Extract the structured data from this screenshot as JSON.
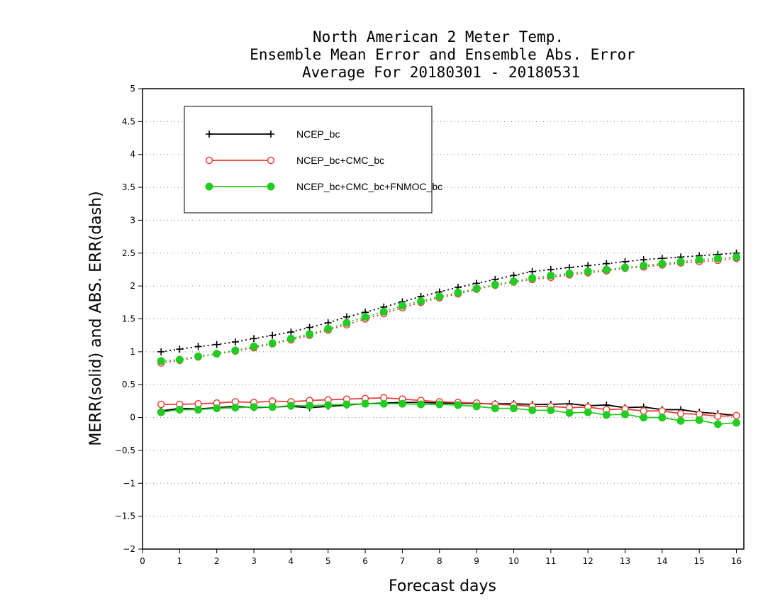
{
  "chart_data": {
    "type": "line",
    "title": [
      "North American 2 Meter Temp.",
      "Ensemble Mean Error and Ensemble Abs. Error",
      "Average For 20180301 - 20180531"
    ],
    "xlabel": "Forecast days",
    "ylabel": "MERR(solid) and ABS. ERR(dash)",
    "xlim": [
      0,
      16.2
    ],
    "ylim": [
      -2,
      5
    ],
    "xticks": [
      0,
      1,
      2,
      3,
      4,
      5,
      6,
      7,
      8,
      9,
      10,
      11,
      12,
      13,
      14,
      15,
      16
    ],
    "yticks": [
      -2,
      -1.5,
      -1,
      -0.5,
      0,
      0.5,
      1,
      1.5,
      2,
      2.5,
      3,
      3.5,
      4,
      4.5,
      5
    ],
    "ytick_labels": [
      "−2",
      "−1.5",
      "−1",
      "−0.5",
      "0",
      "0.5",
      "1",
      "1.5",
      "2",
      "2.5",
      "3",
      "3.5",
      "4",
      "4.5",
      "5"
    ],
    "grid": "horizontal dotted",
    "legend_position": "top-left",
    "x": [
      0.5,
      1,
      1.5,
      2,
      2.5,
      3,
      3.5,
      4,
      4.5,
      5,
      5.5,
      6,
      6.5,
      7,
      7.5,
      8,
      8.5,
      9,
      9.5,
      10,
      10.5,
      11,
      11.5,
      12,
      12.5,
      13,
      13.5,
      14,
      14.5,
      15,
      15.5,
      16
    ],
    "series": [
      {
        "name": "NCEP_bc",
        "color": "#000000",
        "marker": "plus",
        "merr": [
          0.1,
          0.14,
          0.13,
          0.15,
          0.17,
          0.15,
          0.16,
          0.17,
          0.15,
          0.17,
          0.19,
          0.21,
          0.22,
          0.23,
          0.23,
          0.22,
          0.22,
          0.21,
          0.21,
          0.21,
          0.2,
          0.2,
          0.21,
          0.18,
          0.19,
          0.15,
          0.16,
          0.12,
          0.12,
          0.08,
          0.06,
          0.03
        ],
        "abs_err": [
          1.0,
          1.04,
          1.08,
          1.11,
          1.15,
          1.2,
          1.25,
          1.3,
          1.37,
          1.44,
          1.53,
          1.6,
          1.68,
          1.76,
          1.84,
          1.91,
          1.98,
          2.04,
          2.1,
          2.16,
          2.22,
          2.25,
          2.28,
          2.31,
          2.34,
          2.37,
          2.4,
          2.42,
          2.44,
          2.46,
          2.48,
          2.5
        ]
      },
      {
        "name": "NCEP_bc+CMC_bc",
        "color": "#e8403a",
        "marker": "open-circle",
        "merr": [
          0.2,
          0.2,
          0.21,
          0.22,
          0.24,
          0.23,
          0.25,
          0.24,
          0.26,
          0.27,
          0.28,
          0.29,
          0.3,
          0.28,
          0.26,
          0.24,
          0.23,
          0.22,
          0.2,
          0.19,
          0.17,
          0.17,
          0.15,
          0.16,
          0.12,
          0.13,
          0.1,
          0.1,
          0.06,
          0.05,
          0.02,
          0.03
        ],
        "abs_err": [
          0.83,
          0.87,
          0.92,
          0.97,
          1.01,
          1.06,
          1.12,
          1.18,
          1.25,
          1.33,
          1.41,
          1.5,
          1.58,
          1.67,
          1.75,
          1.82,
          1.88,
          1.95,
          2.01,
          2.06,
          2.1,
          2.13,
          2.17,
          2.2,
          2.23,
          2.27,
          2.29,
          2.32,
          2.35,
          2.37,
          2.39,
          2.42
        ]
      },
      {
        "name": "NCEP_bc+CMC_bc+FNMOC_bc",
        "color": "#22cc22",
        "marker": "filled-circle",
        "merr": [
          0.08,
          0.12,
          0.12,
          0.14,
          0.15,
          0.16,
          0.16,
          0.18,
          0.18,
          0.19,
          0.2,
          0.21,
          0.21,
          0.21,
          0.2,
          0.2,
          0.19,
          0.17,
          0.14,
          0.14,
          0.11,
          0.11,
          0.07,
          0.08,
          0.04,
          0.05,
          0.0,
          0.0,
          -0.05,
          -0.04,
          -0.1,
          -0.08
        ],
        "abs_err": [
          0.86,
          0.88,
          0.93,
          0.97,
          1.02,
          1.08,
          1.13,
          1.2,
          1.27,
          1.35,
          1.44,
          1.53,
          1.61,
          1.7,
          1.77,
          1.84,
          1.9,
          1.96,
          2.02,
          2.07,
          2.12,
          2.16,
          2.19,
          2.22,
          2.25,
          2.28,
          2.31,
          2.34,
          2.37,
          2.4,
          2.42,
          2.44
        ]
      }
    ]
  }
}
